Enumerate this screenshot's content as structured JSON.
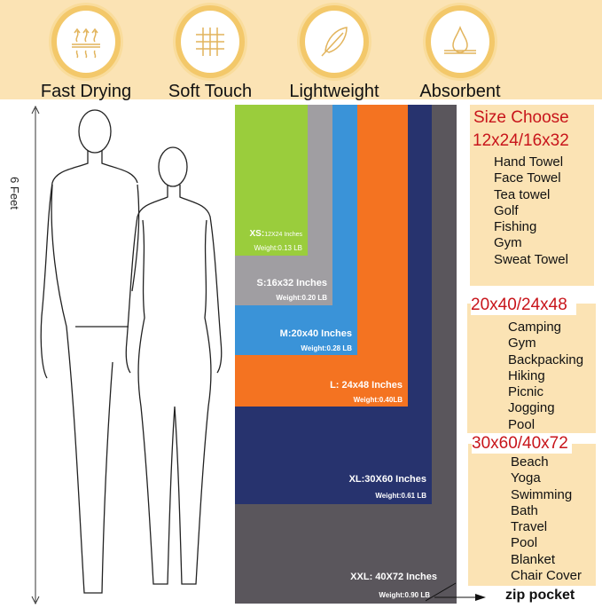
{
  "features": [
    {
      "label": "Fast Drying",
      "icon": "heat-waves-icon"
    },
    {
      "label": "Soft Touch",
      "icon": "woven-grid-icon"
    },
    {
      "label": "Lightweight",
      "icon": "feather-icon"
    },
    {
      "label": "Absorbent",
      "icon": "water-drop-icon"
    }
  ],
  "height_label": "6 Feet",
  "sizes": [
    {
      "name": "XS:",
      "dims": "12X24 Inches",
      "weight": "Weight:0.13 LB",
      "color": "#9acd3c"
    },
    {
      "name": "S:16x32 Inches",
      "weight": "Weight:0.20 LB",
      "color": "#a09ea2"
    },
    {
      "name": "M:20x40 Inches",
      "weight": "Weight:0.28 LB",
      "color": "#3a93d8"
    },
    {
      "name": "L: 24x48 Inches",
      "weight": "Weight:0.40LB",
      "color": "#f47321"
    },
    {
      "name": "XL:30X60 Inches",
      "weight": "Weight:0.61 LB",
      "color": "#27336e"
    },
    {
      "name": "XXL: 40X72 Inches",
      "weight": "Weight:0.90 LB",
      "color": "#5a565c"
    }
  ],
  "zip_label": "zip pocket",
  "size_choose": {
    "title": "Size Choose",
    "groups": [
      {
        "heading": "12x24/16x32",
        "items": [
          "Hand Towel",
          "Face Towel",
          "Tea towel",
          "Golf",
          "Fishing",
          "Gym",
          "Sweat Towel"
        ]
      },
      {
        "heading": "20x40/24x48",
        "items": [
          "Camping",
          "Gym",
          "Backpacking",
          "Hiking",
          "Picnic",
          "Jogging",
          "Pool"
        ]
      },
      {
        "heading": "30x60/40x72",
        "items": [
          "Beach",
          "Yoga",
          "Swimming",
          "Bath",
          "Travel",
          "Pool",
          "Blanket",
          "Chair Cover"
        ]
      }
    ]
  }
}
